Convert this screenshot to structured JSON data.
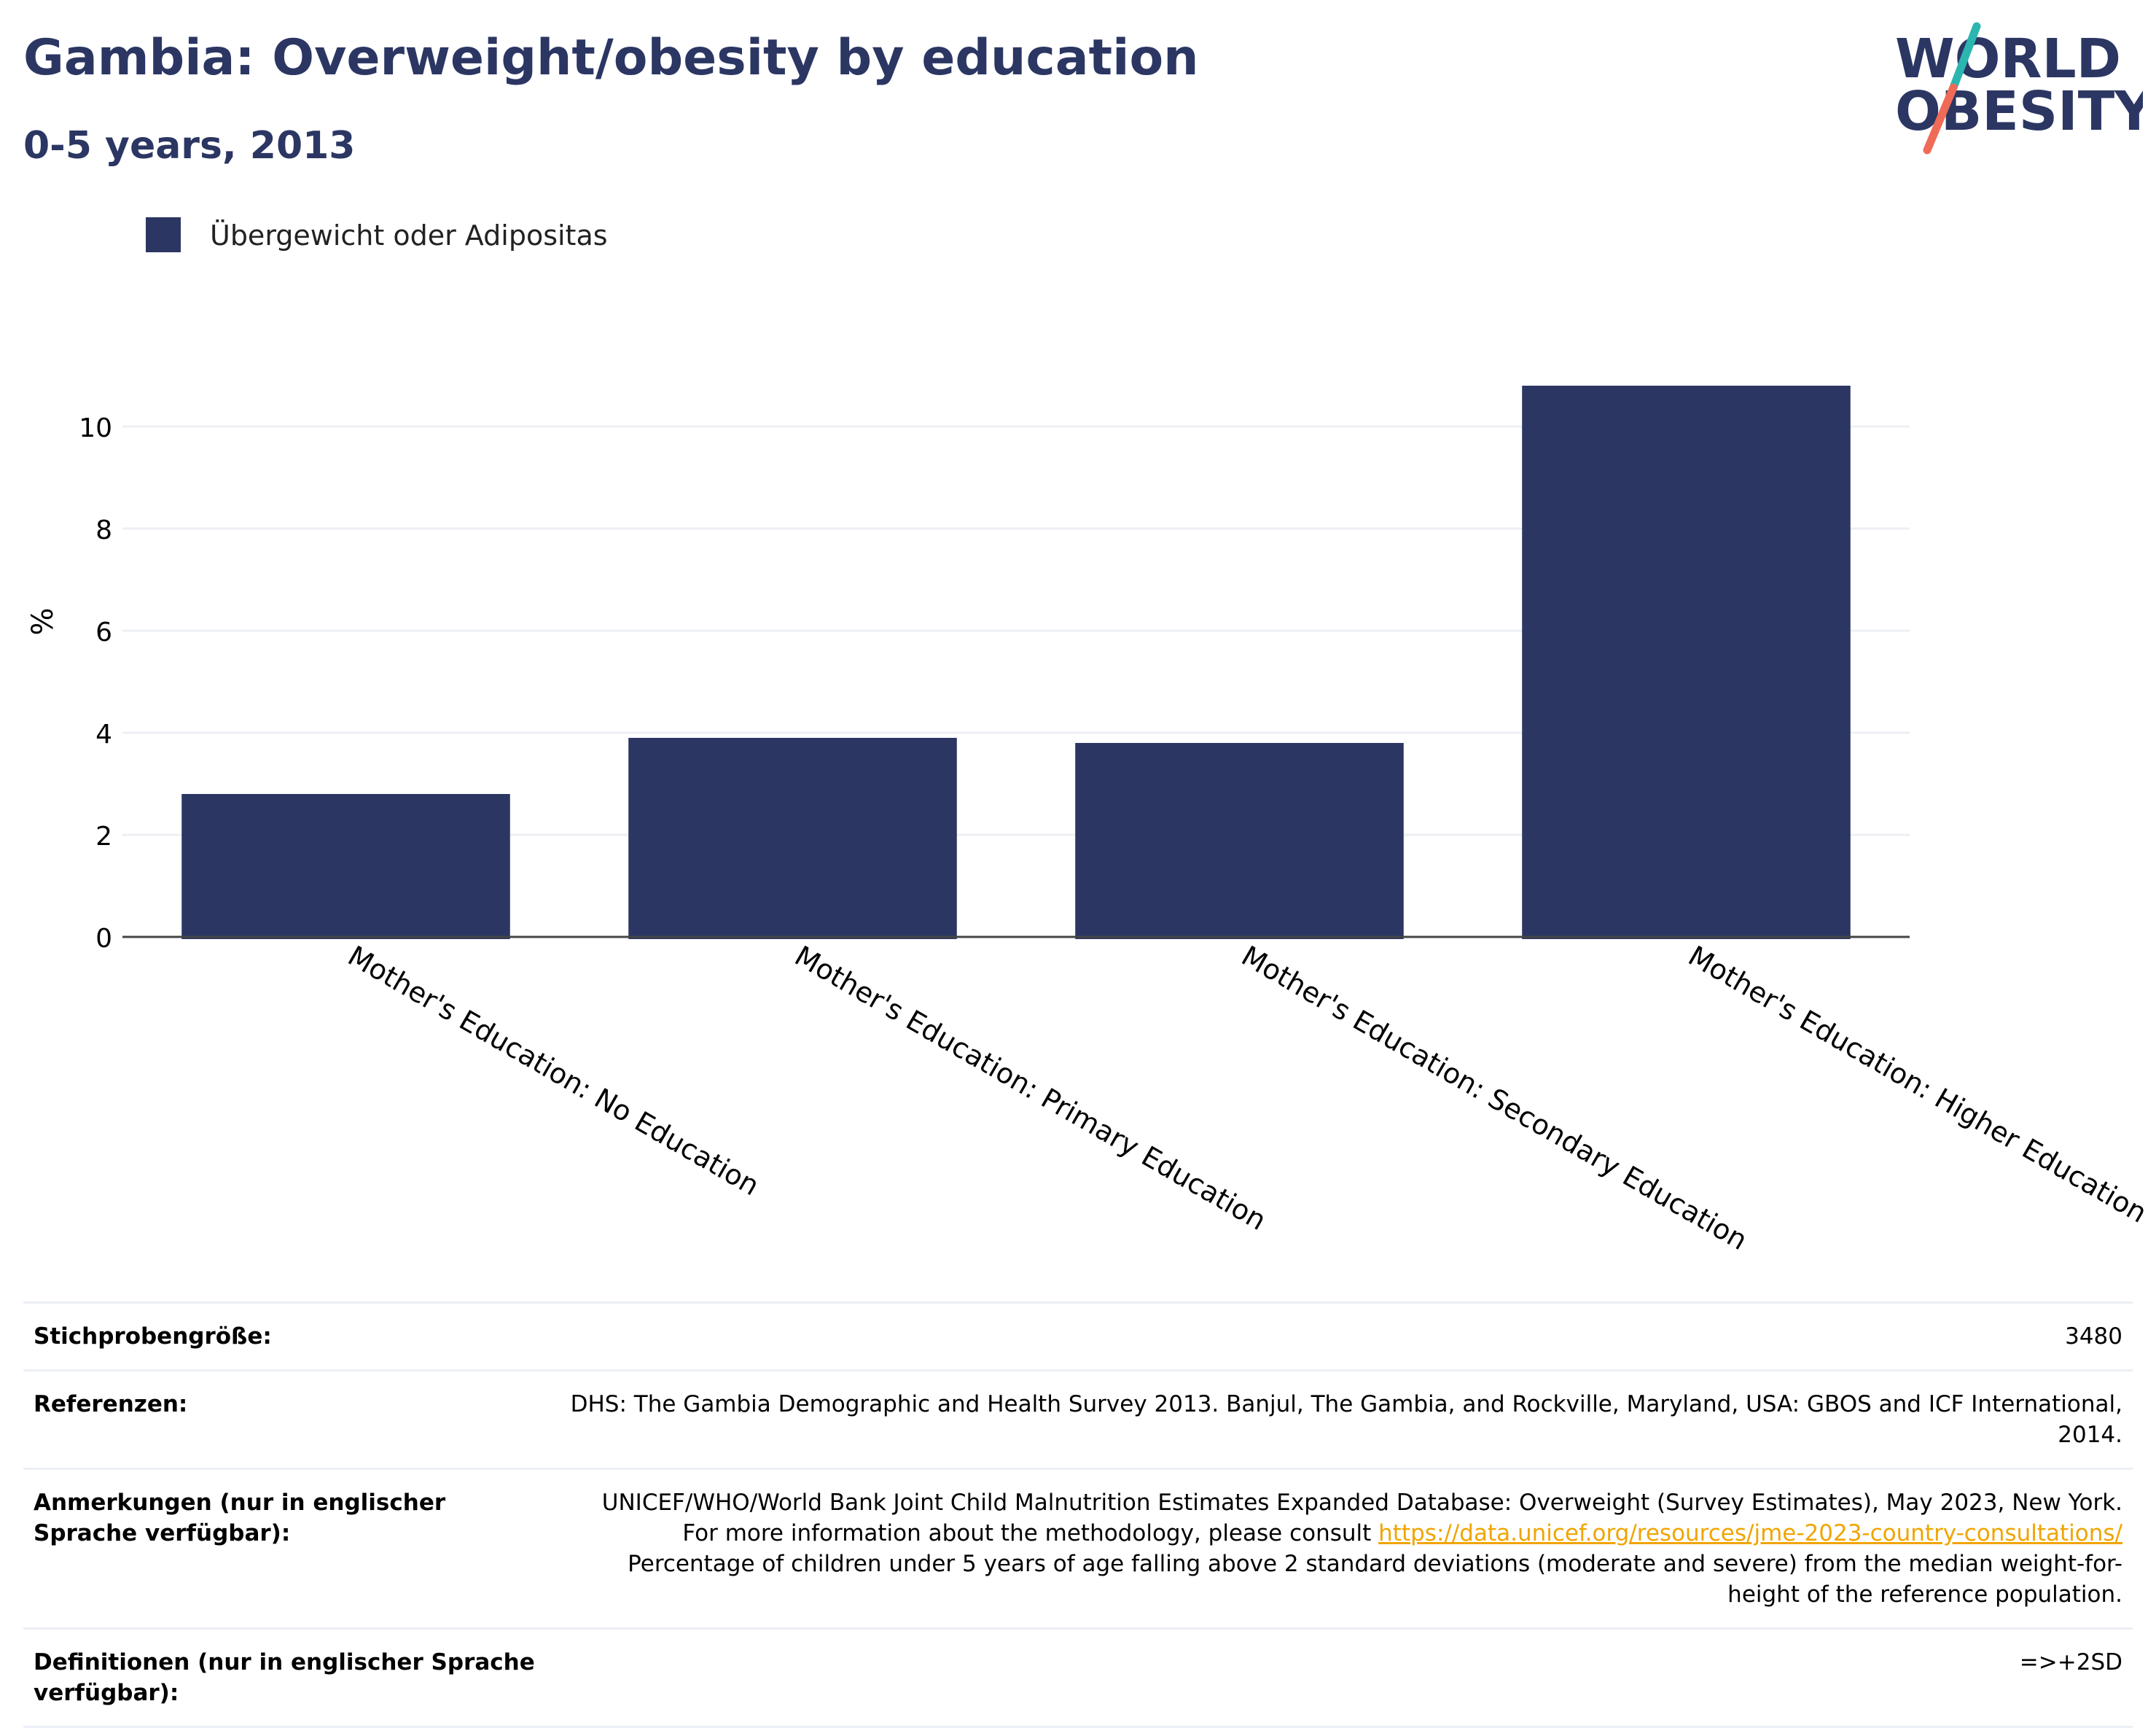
{
  "header": {
    "title": "Gambia: Overweight/obesity by education",
    "subtitle": "0-5 years, 2013"
  },
  "logo": {
    "line1": "WORLD",
    "line2": "OBESITY",
    "colors": {
      "text": "#2b3663",
      "slash_top": "#2bb6b0",
      "slash_bottom": "#ef6b57"
    }
  },
  "chart_data": {
    "type": "bar",
    "title": "",
    "xlabel": "",
    "ylabel": "%",
    "categories": [
      "Mother's Education: No Education",
      "Mother's Education: Primary Education",
      "Mother's Education: Secondary Education",
      "Mother's Education: Higher Education"
    ],
    "series": [
      {
        "name": "Übergewicht oder Adipositas",
        "values": [
          2.8,
          3.9,
          3.8,
          10.8
        ],
        "color": "#2b3663"
      }
    ],
    "ylim": [
      0,
      11.5
    ],
    "yticks": [
      0,
      2,
      4,
      6,
      8,
      10
    ],
    "grid": true,
    "legend_position": "top-left",
    "x_label_rotation_deg": 30
  },
  "info": {
    "rows": [
      {
        "label": "Stichprobengröße:",
        "value": "3480"
      },
      {
        "label": "Referenzen:",
        "value": "DHS: The Gambia Demographic and Health Survey 2013. Banjul, The Gambia, and Rockville, Maryland, USA: GBOS and ICF International, 2014."
      },
      {
        "label": "Anmerkungen (nur in englischer Sprache verfügbar):",
        "value_before": "UNICEF/WHO/World Bank Joint Child Malnutrition Estimates Expanded Database: Overweight (Survey Estimates), May 2023, New York. For more information about the methodology, please consult ",
        "link": "https://data.unicef.org/resources/jme-2023-country-consultations/",
        "value_after": " Percentage of children under 5 years of age falling above 2 standard deviations (moderate and severe) from the median weight-for-height of the reference population."
      },
      {
        "label": "Definitionen (nur in englischer Sprache verfügbar):",
        "value": "=>+2SD"
      }
    ]
  }
}
